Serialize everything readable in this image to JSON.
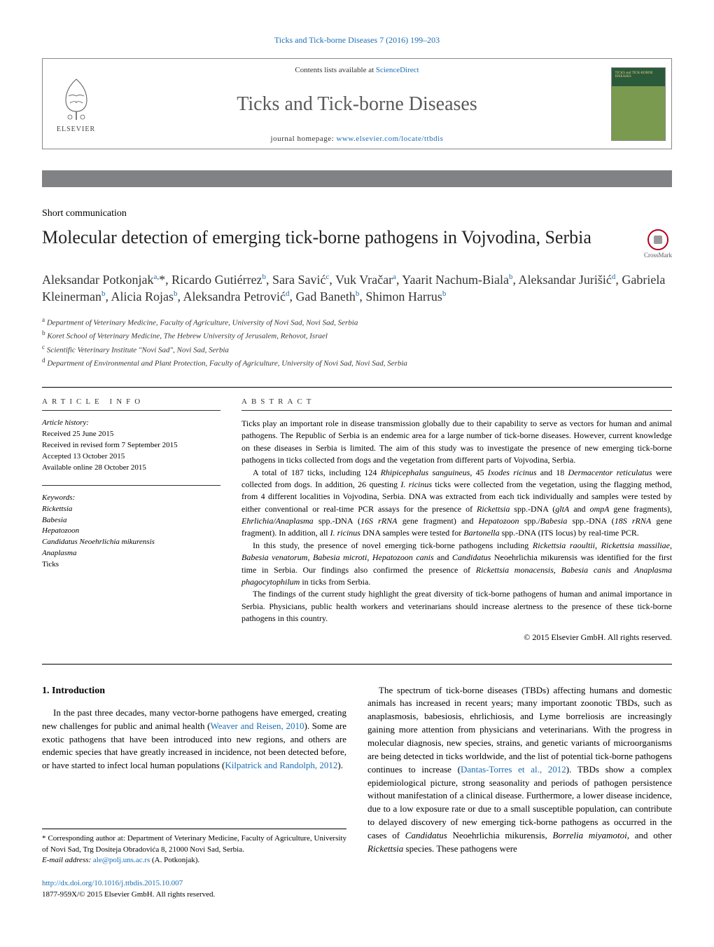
{
  "top_citation": "Ticks and Tick-borne Diseases 7 (2016) 199–203",
  "header": {
    "elsevier": "ELSEVIER",
    "contents_prefix": "Contents lists available at ",
    "contents_link": "ScienceDirect",
    "journal_title": "Ticks and Tick-borne Diseases",
    "homepage_prefix": "journal homepage: ",
    "homepage_link": "www.elsevier.com/locate/ttbdis",
    "cover_text": "TICKS and TICK-BORNE DISEASES"
  },
  "color_bar": "#808285",
  "article_type": "Short communication",
  "title": "Molecular detection of emerging tick-borne pathogens in Vojvodina, Serbia",
  "crossmark_label": "CrossMark",
  "authors_html": "Aleksandar Potkonjak<sup><a>a</a>,</sup>*, Ricardo Gutiérrez<sup><a>b</a></sup>, Sara Savić<sup><a>c</a></sup>, Vuk Vračar<sup><a>a</a></sup>, Yaarit Nachum-Biala<sup><a>b</a></sup>, Aleksandar Jurišić<sup><a>d</a></sup>, Gabriela Kleinerman<sup><a>b</a></sup>, Alicia Rojas<sup><a>b</a></sup>, Aleksandra Petrović<sup><a>d</a></sup>, Gad Baneth<sup><a>b</a></sup>, Shimon Harrus<sup><a>b</a></sup>",
  "affiliations": [
    {
      "sup": "a",
      "text": "Department of Veterinary Medicine, Faculty of Agriculture, University of Novi Sad, Novi Sad, Serbia"
    },
    {
      "sup": "b",
      "text": "Koret School of Veterinary Medicine, The Hebrew University of Jerusalem, Rehovot, Israel"
    },
    {
      "sup": "c",
      "text": "Scientific Veterinary Institute \"Novi Sad\", Novi Sad, Serbia"
    },
    {
      "sup": "d",
      "text": "Department of Environmental and Plant Protection, Faculty of Agriculture, University of Novi Sad, Novi Sad, Serbia"
    }
  ],
  "info_label": "article info",
  "abstract_label": "abstract",
  "history": {
    "head": "Article history:",
    "received": "Received 25 June 2015",
    "revised": "Received in revised form 7 September 2015",
    "accepted": "Accepted 13 October 2015",
    "online": "Available online 28 October 2015"
  },
  "keywords": {
    "head": "Keywords:",
    "items": [
      "Rickettsia",
      "Babesia",
      "Hepatozoon"
    ],
    "cand": "Candidatus Neoehrlichia mikurensis",
    "items2": [
      "Anaplasma",
      "Ticks"
    ]
  },
  "abstract": {
    "p1": "Ticks play an important role in disease transmission globally due to their capability to serve as vectors for human and animal pathogens. The Republic of Serbia is an endemic area for a large number of tick-borne diseases. However, current knowledge on these diseases in Serbia is limited. The aim of this study was to investigate the presence of new emerging tick-borne pathogens in ticks collected from dogs and the vegetation from different parts of Vojvodina, Serbia.",
    "p2_pre": "A total of 187 ticks, including 124 ",
    "p2_sp1": "Rhipicephalus sanguineus",
    "p2_mid1": ", 45 ",
    "p2_sp2": "Ixodes ricinus",
    "p2_mid2": " and 18 ",
    "p2_sp3": "Dermacentor reticulatus",
    "p2_mid3": " were collected from dogs. In addition, 26 questing ",
    "p2_sp4": "I. ricinus",
    "p2_mid4": " ticks were collected from the vegetation, using the flagging method, from 4 different localities in Vojvodina, Serbia. DNA was extracted from each tick individually and samples were tested by either conventional or real-time PCR assays for the presence of ",
    "p2_sp5": "Rickettsia",
    "p2_mid5": " spp.-DNA (",
    "p2_g1": "gltA",
    "p2_mid6": " and ",
    "p2_g2": "ompA",
    "p2_mid7": " gene fragments), ",
    "p2_sp6": "Ehrlichia/Anaplasma",
    "p2_mid8": " spp.-DNA (",
    "p2_g3": "16S rRNA",
    "p2_mid9": " gene fragment) and ",
    "p2_sp7": "Hepatozoon",
    "p2_mid10": " spp./",
    "p2_sp8": "Babesia",
    "p2_mid11": " spp.-DNA (",
    "p2_g4": "18S rRNA",
    "p2_mid12": " gene fragment). In addition, all ",
    "p2_sp9": "I. ricinus",
    "p2_mid13": " DNA samples were tested for ",
    "p2_sp10": "Bartonella",
    "p2_mid14": " spp.-DNA (ITS locus) by real-time PCR.",
    "p3_pre": "In this study, the presence of novel emerging tick-borne pathogens including ",
    "p3_s1": "Rickettsia raoultii",
    "p3_c1": ", ",
    "p3_s2": "Rickettsia massiliae",
    "p3_c2": ", ",
    "p3_s3": "Babesia venatorum",
    "p3_c3": ", ",
    "p3_s4": "Babesia microti",
    "p3_c4": ", ",
    "p3_s5": "Hepatozoon canis",
    "p3_c5": " and ",
    "p3_s6": "Candidatus",
    "p3_c6": " Neoehrlichia mikurensis was identified for the first time in Serbia. Our findings also confirmed the presence of ",
    "p3_s7": "Rickettsia monacensis",
    "p3_c7": ", ",
    "p3_s8": "Babesia canis",
    "p3_c8": " and ",
    "p3_s9": "Anaplasma phagocytophilum",
    "p3_end": " in ticks from Serbia.",
    "p4": "The findings of the current study highlight the great diversity of tick-borne pathogens of human and animal importance in Serbia. Physicians, public health workers and veterinarians should increase alertness to the presence of these tick-borne pathogens in this country."
  },
  "copyright": "© 2015 Elsevier GmbH. All rights reserved.",
  "intro": {
    "heading": "1.  Introduction",
    "p1_pre": "In the past three decades, many vector-borne pathogens have emerged, creating new challenges for public and animal health (",
    "p1_ref1": "Weaver and Reisen, 2010",
    "p1_mid": "). Some are exotic pathogens that have been introduced into new regions, and others are endemic species that have greatly increased in incidence, not been detected before, or have started to infect local human populations (",
    "p1_ref2": "Kilpatrick and Randolph, 2012",
    "p1_end": ").",
    "p2_pre": "The spectrum of tick-borne diseases (TBDs) affecting humans and domestic animals has increased in recent years; many important zoonotic TBDs, such as anaplasmosis, babesiosis, ehrlichiosis, and Lyme borreliosis are increasingly gaining more attention from physicians and veterinarians. With the progress in molecular diagnosis, new species, strains, and genetic variants of microorganisms are being detected in ticks worldwide, and the list of potential tick-borne pathogens continues to increase (",
    "p2_ref1": "Dantas-Torres et al., 2012",
    "p2_mid": "). TBDs show a complex epidemiological picture, strong seasonality and periods of pathogen persistence without manifestation of a clinical disease. Furthermore, a lower disease incidence, due to a low exposure rate or due to a small susceptible population, can contribute to delayed discovery of new emerging tick-borne pathogens as occurred in the cases of ",
    "p2_s1": "Candidatus",
    "p2_mid2": " Neoehrlichia mikurensis, ",
    "p2_s2": "Borrelia miyamotoi",
    "p2_mid3": ", and other ",
    "p2_s3": "Rickettsia",
    "p2_end": " species. These pathogens were"
  },
  "footnote": {
    "star": "*",
    "text": "Corresponding author at: Department of Veterinary Medicine, Faculty of Agriculture, University of Novi Sad, Trg Dositeja Obradovića 8, 21000 Novi Sad, Serbia.",
    "email_label": "E-mail address: ",
    "email": "ale@polj.uns.ac.rs",
    "email_who": " (A. Potkonjak)."
  },
  "doi": {
    "link": "http://dx.doi.org/10.1016/j.ttbdis.2015.10.007",
    "issn": "1877-959X/© 2015 Elsevier GmbH. All rights reserved."
  },
  "colors": {
    "link": "#1a6db3",
    "bar": "#808285",
    "crossmark_ring": "#b00020"
  }
}
